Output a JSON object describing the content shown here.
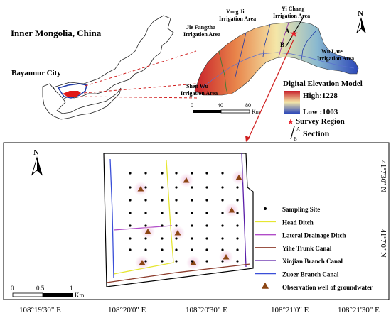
{
  "overview": {
    "title": "Inner  Mongolia, China",
    "city_label": "Bayannur City",
    "areas": [
      "Yong Ji",
      "Irrigation Area",
      "Yi Chang",
      "Irrigation Area",
      "Jie Fangzha",
      "Irrigation Area",
      "Wu Late",
      "Irrigation Area",
      "Shen Wu",
      "Irrigation Area"
    ],
    "section_points": [
      "A",
      "B"
    ],
    "north": "N"
  },
  "scalebar_top": {
    "ticks": [
      "0",
      "40",
      "80"
    ],
    "unit": "Km"
  },
  "legend_top": {
    "title": "Digital Elevation Model",
    "high": "High:1228",
    "low": "Low :1003",
    "survey": "Survey Region",
    "section_a": "A",
    "section_b": "B",
    "section": "Section",
    "colors": {
      "high": "#c8202a",
      "mid": "#f4e7a8",
      "low": "#2c47b8",
      "star": "#e8202a"
    }
  },
  "detail": {
    "north": "N",
    "scalebar": {
      "ticks": [
        "0",
        "0.5",
        "1"
      ],
      "unit": "Km"
    },
    "lat_labels": [
      "41°7'30\" N",
      "41°7'0\" N"
    ],
    "lon_labels": [
      "108°19'30\" E",
      "108°20'0\" E",
      "108°20'30\" E",
      "108°21'0\" E",
      "108°21'30\" E"
    ]
  },
  "legend_bottom": {
    "items": [
      {
        "label": "Sampling Site",
        "symbol": "dot",
        "color": "#000000"
      },
      {
        "label": "Head Ditch",
        "symbol": "line",
        "color": "#e6e631"
      },
      {
        "label": "Lateral Drainage Ditch",
        "symbol": "line",
        "color": "#b04cc8"
      },
      {
        "label": "Yihe Trunk Canal",
        "symbol": "line",
        "color": "#8b3a2a"
      },
      {
        "label": "Xinjian Branch Canal",
        "symbol": "line",
        "color": "#5a1ea8"
      },
      {
        "label": "Zuoer Branch Canal",
        "symbol": "line",
        "color": "#3a4fd8"
      },
      {
        "label": "Observation well of groundwater",
        "symbol": "triangle",
        "color": "#8b4513"
      }
    ]
  }
}
